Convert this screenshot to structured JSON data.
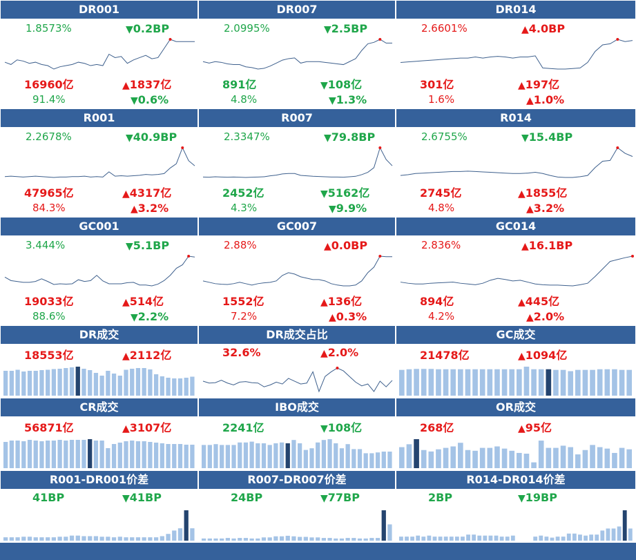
{
  "colors": {
    "header_bg": "#35619b",
    "up": "#e51919",
    "down": "#1fa64a",
    "bar": "#a4c3e6",
    "bar_highlight": "#24446f",
    "line": "#3d5f8c"
  },
  "line_panels": [
    {
      "title": "DR001",
      "rate": "1.8573%",
      "rate_color": "green",
      "rate_dir": "down",
      "rate_chg": "0.2BP",
      "vol": "16960亿",
      "vol_color": "red",
      "vol_dir": "up",
      "vol_chg": "1837亿",
      "share": "91.4%",
      "share_color": "green",
      "share_dir": "down",
      "share_chg": "0.6%",
      "series": [
        1.66,
        1.64,
        1.68,
        1.67,
        1.65,
        1.66,
        1.64,
        1.63,
        1.6,
        1.62,
        1.63,
        1.64,
        1.66,
        1.65,
        1.63,
        1.64,
        1.63,
        1.73,
        1.7,
        1.71,
        1.65,
        1.68,
        1.7,
        1.72,
        1.69,
        1.7,
        1.78,
        1.86,
        1.84,
        1.84,
        1.84,
        1.84
      ]
    },
    {
      "title": "DR007",
      "rate": "2.0995%",
      "rate_color": "green",
      "rate_dir": "down",
      "rate_chg": "2.5BP",
      "vol": "891亿",
      "vol_color": "green",
      "vol_dir": "down",
      "vol_chg": "108亿",
      "share": "4.8%",
      "share_color": "green",
      "share_dir": "down",
      "share_chg": "1.3%",
      "series": [
        1.8,
        1.78,
        1.8,
        1.79,
        1.77,
        1.76,
        1.76,
        1.73,
        1.72,
        1.7,
        1.71,
        1.74,
        1.78,
        1.82,
        1.84,
        1.85,
        1.78,
        1.8,
        1.8,
        1.8,
        1.79,
        1.78,
        1.77,
        1.76,
        1.8,
        1.84,
        1.95,
        2.04,
        2.06,
        2.1,
        2.05,
        2.05
      ]
    },
    {
      "title": "DR014",
      "rate": "2.6601%",
      "rate_color": "red",
      "rate_dir": "up",
      "rate_chg": "4.0BP",
      "vol": "301亿",
      "vol_color": "red",
      "vol_dir": "up",
      "vol_chg": "197亿",
      "share": "1.6%",
      "share_color": "red",
      "share_dir": "up",
      "share_chg": "1.0%",
      "series": [
        2.2,
        2.21,
        2.22,
        2.23,
        2.24,
        2.25,
        2.26,
        2.27,
        2.28,
        2.28,
        2.3,
        2.28,
        2.3,
        2.31,
        2.3,
        2.28,
        2.3,
        2.3,
        2.32,
        2.1,
        2.09,
        2.08,
        2.08,
        2.09,
        2.1,
        2.2,
        2.4,
        2.52,
        2.54,
        2.62,
        2.58,
        2.6
      ]
    },
    {
      "title": "R001",
      "rate": "2.2678%",
      "rate_color": "green",
      "rate_dir": "down",
      "rate_chg": "40.9BP",
      "vol": "47965亿",
      "vol_color": "red",
      "vol_dir": "up",
      "vol_chg": "4317亿",
      "share": "84.3%",
      "share_color": "red",
      "share_dir": "up",
      "share_chg": "3.2%",
      "series": [
        1.75,
        1.76,
        1.75,
        1.74,
        1.75,
        1.76,
        1.75,
        1.74,
        1.73,
        1.74,
        1.74,
        1.75,
        1.75,
        1.76,
        1.74,
        1.75,
        1.74,
        1.86,
        1.76,
        1.77,
        1.76,
        1.77,
        1.78,
        1.8,
        1.79,
        1.8,
        1.82,
        1.95,
        2.05,
        2.42,
        2.12,
        2.0
      ]
    },
    {
      "title": "R007",
      "rate": "2.3347%",
      "rate_color": "green",
      "rate_dir": "down",
      "rate_chg": "79.8BP",
      "vol": "2452亿",
      "vol_color": "green",
      "vol_dir": "down",
      "vol_chg": "5162亿",
      "share": "4.3%",
      "share_color": "green",
      "share_dir": "down",
      "share_chg": "9.9%",
      "series": [
        1.85,
        1.84,
        1.86,
        1.85,
        1.84,
        1.85,
        1.84,
        1.83,
        1.84,
        1.85,
        1.86,
        1.9,
        1.93,
        1.98,
        2.0,
        2.0,
        1.92,
        1.9,
        1.88,
        1.87,
        1.86,
        1.85,
        1.85,
        1.84,
        1.86,
        1.88,
        1.95,
        2.05,
        2.25,
        3.1,
        2.6,
        2.33
      ]
    },
    {
      "title": "R014",
      "rate": "2.6755%",
      "rate_color": "green",
      "rate_dir": "down",
      "rate_chg": "15.4BP",
      "vol": "2745亿",
      "vol_color": "red",
      "vol_dir": "up",
      "vol_chg": "1855亿",
      "share": "4.8%",
      "share_color": "red",
      "share_dir": "up",
      "share_chg": "3.2%",
      "series": [
        2.2,
        2.22,
        2.25,
        2.26,
        2.27,
        2.28,
        2.29,
        2.3,
        2.3,
        2.31,
        2.3,
        2.29,
        2.28,
        2.27,
        2.26,
        2.25,
        2.25,
        2.26,
        2.28,
        2.25,
        2.2,
        2.16,
        2.15,
        2.15,
        2.17,
        2.2,
        2.4,
        2.56,
        2.58,
        2.9,
        2.76,
        2.68
      ]
    },
    {
      "title": "GC001",
      "rate": "3.444%",
      "rate_color": "green",
      "rate_dir": "down",
      "rate_chg": "5.1BP",
      "vol": "19033亿",
      "vol_color": "red",
      "vol_dir": "up",
      "vol_chg": "514亿",
      "share": "88.6%",
      "share_color": "green",
      "share_dir": "down",
      "share_chg": "2.2%",
      "series": [
        2.3,
        2.1,
        2.05,
        2.0,
        2.0,
        2.05,
        2.2,
        2.05,
        1.88,
        1.92,
        1.9,
        1.92,
        2.15,
        2.05,
        2.1,
        2.4,
        2.08,
        1.92,
        1.92,
        1.92,
        1.98,
        2.0,
        1.85,
        1.85,
        1.8,
        1.9,
        2.1,
        2.4,
        2.8,
        3.0,
        3.49,
        3.44
      ]
    },
    {
      "title": "GC007",
      "rate": "2.88%",
      "rate_color": "red",
      "rate_dir": "up",
      "rate_chg": "0.0BP",
      "vol": "1552亿",
      "vol_color": "red",
      "vol_dir": "up",
      "vol_chg": "136亿",
      "share": "7.2%",
      "share_color": "red",
      "share_dir": "up",
      "share_chg": "0.3%",
      "series": [
        2.0,
        1.95,
        1.9,
        1.88,
        1.87,
        1.9,
        1.95,
        1.9,
        1.85,
        1.9,
        1.93,
        1.95,
        2.0,
        2.2,
        2.3,
        2.25,
        2.15,
        2.1,
        2.05,
        2.05,
        2.0,
        1.9,
        1.85,
        1.82,
        1.82,
        1.85,
        2.0,
        2.3,
        2.5,
        2.9,
        2.88,
        2.88
      ]
    },
    {
      "title": "GC014",
      "rate": "2.836%",
      "rate_color": "red",
      "rate_dir": "up",
      "rate_chg": "16.1BP",
      "vol": "894亿",
      "vol_color": "red",
      "vol_dir": "up",
      "vol_chg": "445亿",
      "share": "4.2%",
      "share_color": "red",
      "share_dir": "up",
      "share_chg": "2.0%",
      "series": [
        2.15,
        2.12,
        2.1,
        2.1,
        2.12,
        2.13,
        2.14,
        2.15,
        2.12,
        2.1,
        2.08,
        2.12,
        2.2,
        2.25,
        2.22,
        2.18,
        2.2,
        2.15,
        2.1,
        2.08,
        2.07,
        2.07,
        2.06,
        2.05,
        2.08,
        2.12,
        2.3,
        2.5,
        2.7,
        2.75,
        2.8,
        2.84
      ]
    }
  ],
  "vol_panels": [
    {
      "title": "DR成交",
      "type": "bar",
      "vol": "18553亿",
      "vol_color": "red",
      "vol_dir": "up",
      "vol_chg": "2112亿",
      "series": [
        72,
        72,
        75,
        70,
        72,
        72,
        74,
        75,
        77,
        78,
        80,
        82,
        84,
        78,
        74,
        66,
        58,
        72,
        64,
        58,
        75,
        78,
        80,
        80,
        76,
        62,
        56,
        52,
        50,
        50,
        52,
        55
      ],
      "hl": [
        12
      ]
    },
    {
      "title": "DR成交占比",
      "type": "line",
      "vol": "32.6%",
      "vol_color": "red",
      "vol_dir": "up",
      "vol_chg": "2.0%",
      "series": [
        91.0,
        90.0,
        90.2,
        91.5,
        90.0,
        89.0,
        90.5,
        90.8,
        90.2,
        90.0,
        88.0,
        89.0,
        90.5,
        89.5,
        92.5,
        91.0,
        89.5,
        90.0,
        96.0,
        85.5,
        93.5,
        96.0,
        98.0,
        96.5,
        93.5,
        90.5,
        88.5,
        89.5,
        85.5,
        91.0,
        88.0,
        91.4
      ],
      "hl": [
        22
      ]
    },
    {
      "title": "GC成交",
      "type": "bar",
      "vol": "21478亿",
      "vol_color": "red",
      "vol_dir": "up",
      "vol_chg": "1094亿",
      "series": [
        80,
        82,
        83,
        83,
        83,
        82,
        82,
        82,
        82,
        82,
        82,
        82,
        82,
        82,
        82,
        82,
        82,
        90,
        82,
        82,
        82,
        80,
        80,
        76,
        80,
        80,
        80,
        82,
        82,
        82,
        80,
        80
      ],
      "hl": [
        20
      ]
    },
    {
      "title": "CR成交",
      "type": "bar",
      "vol": "56871亿",
      "vol_color": "red",
      "vol_dir": "up",
      "vol_chg": "3107亿",
      "series": [
        76,
        80,
        80,
        78,
        82,
        80,
        78,
        80,
        80,
        82,
        80,
        82,
        82,
        82,
        84,
        80,
        80,
        58,
        70,
        74,
        78,
        80,
        78,
        78,
        76,
        74,
        72,
        70,
        70,
        70,
        68,
        68
      ],
      "hl": [
        14
      ]
    },
    {
      "title": "IBO成交",
      "type": "bar",
      "vol": "2241亿",
      "vol_color": "green",
      "vol_dir": "down",
      "vol_chg": "108亿",
      "series": [
        56,
        56,
        58,
        56,
        56,
        56,
        62,
        62,
        64,
        60,
        60,
        56,
        60,
        62,
        60,
        68,
        60,
        44,
        48,
        62,
        68,
        70,
        60,
        48,
        58,
        46,
        46,
        36,
        36,
        38,
        40,
        40
      ],
      "hl": [
        14
      ]
    },
    {
      "title": "OR成交",
      "type": "bar",
      "vol": "268亿",
      "vol_color": "red",
      "vol_dir": "up",
      "vol_chg": "95亿",
      "series": [
        58,
        66,
        80,
        50,
        46,
        52,
        56,
        60,
        70,
        50,
        48,
        56,
        56,
        60,
        54,
        48,
        42,
        40,
        16,
        76,
        56,
        56,
        62,
        58,
        38,
        50,
        64,
        58,
        54,
        42,
        56,
        52
      ],
      "hl": [
        2
      ]
    },
    {
      "title": "R001-DR001价差",
      "type": "bar",
      "vol": "41BP",
      "vol_color": "green",
      "vol_dir": "down",
      "vol_chg": "41BP",
      "series": [
        6,
        6,
        6,
        7,
        7,
        6,
        6,
        6,
        6,
        7,
        7,
        9,
        9,
        8,
        8,
        8,
        7,
        7,
        6,
        7,
        6,
        6,
        6,
        6,
        6,
        6,
        8,
        12,
        18,
        22,
        54,
        22
      ],
      "hl": [
        30
      ]
    },
    {
      "title": "R007-DR007价差",
      "type": "bar",
      "vol": "24BP",
      "vol_color": "green",
      "vol_dir": "down",
      "vol_chg": "77BP",
      "series": [
        4,
        4,
        4,
        4,
        5,
        4,
        5,
        5,
        4,
        4,
        6,
        6,
        8,
        8,
        9,
        8,
        7,
        7,
        6,
        6,
        5,
        5,
        4,
        4,
        5,
        5,
        4,
        4,
        5,
        5,
        56,
        30
      ],
      "hl": [
        30
      ]
    },
    {
      "title": "R014-DR014价差",
      "type": "bar",
      "vol": "2BP",
      "vol_color": "green",
      "vol_dir": "down",
      "vol_chg": "19BP",
      "series": [
        8,
        8,
        8,
        10,
        8,
        10,
        8,
        8,
        8,
        8,
        8,
        8,
        12,
        12,
        10,
        10,
        10,
        10,
        8,
        8,
        10,
        0,
        0,
        0,
        8,
        10,
        8,
        6,
        8,
        8,
        14,
        14,
        12,
        10,
        12,
        12,
        20,
        24,
        24,
        28,
        60,
        24
      ],
      "hl": [
        40
      ]
    }
  ]
}
